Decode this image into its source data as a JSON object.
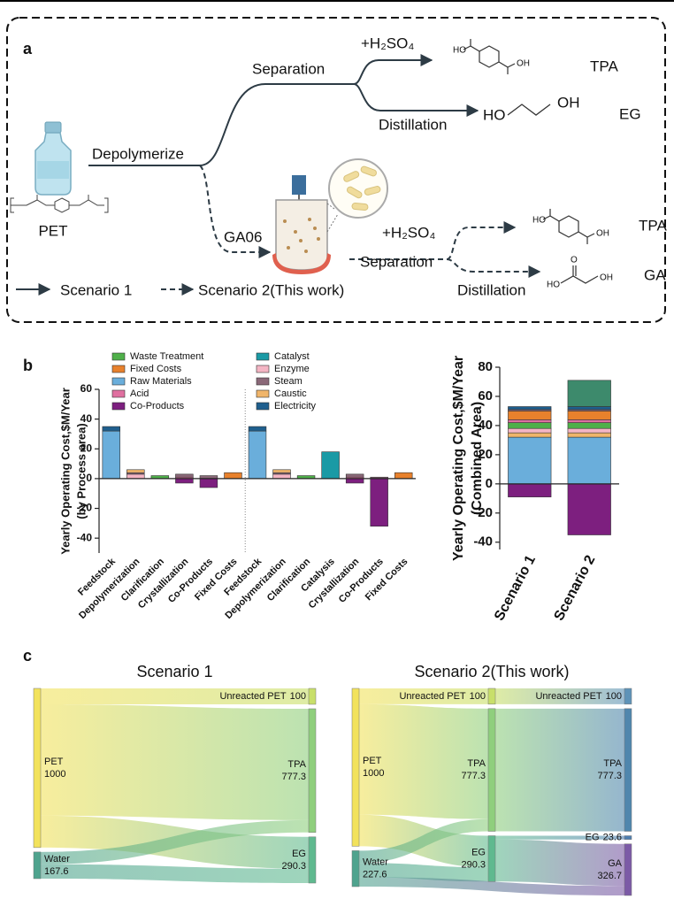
{
  "panel_labels": [
    "a",
    "b",
    "c"
  ],
  "panel_a": {
    "start": "PET",
    "depolymerize": "Depolymerize",
    "scenario1": {
      "separation": "Separation",
      "acid": "+H₂SO₄",
      "distillation": "Distillation",
      "product1": "TPA",
      "product2": "EG"
    },
    "scenario2": {
      "strain": "GA06",
      "acid": "+H₂SO₄",
      "separation": "Separation",
      "distillation": "Distillation",
      "product1": "TPA",
      "product2": "GA"
    },
    "structures": {
      "tpa1": [
        "HO",
        "OH"
      ],
      "eg": [
        "HO",
        "OH"
      ],
      "tpa2": [
        "HO",
        "OH"
      ],
      "ga": [
        "HO",
        "O",
        "OH"
      ]
    },
    "legend": [
      "Scenario 1",
      "Scenario 2(This work)"
    ]
  },
  "chart_data": [
    {
      "type": "bar",
      "ylabel": [
        "Yearly Operating Cost,$M/Year",
        "(by Process area)"
      ],
      "categories": [
        "Feedstock",
        "Depolymerization",
        "Clarification",
        "Crystallization",
        "Co-Products",
        "Fixed Costs",
        "Feedstock",
        "Depolymerization",
        "Clarification",
        "Catalysis",
        "Crystallization",
        "Co-Products",
        "Fixed Costs"
      ],
      "ylim": [
        -50,
        60
      ],
      "yticks": [
        60,
        40,
        20,
        0,
        -20,
        -40
      ],
      "legend": "top",
      "series": [
        {
          "name": "Waste Treatment",
          "color": "#4fb04a",
          "values": [
            null,
            null,
            2,
            null,
            null,
            null,
            null,
            null,
            2,
            null,
            null,
            null,
            null
          ]
        },
        {
          "name": "Fixed Costs",
          "color": "#e8812c",
          "values": [
            null,
            null,
            null,
            null,
            null,
            4,
            null,
            null,
            null,
            null,
            null,
            null,
            4
          ]
        },
        {
          "name": "Raw Materials",
          "color": "#6aaedb",
          "values": [
            32,
            null,
            null,
            null,
            null,
            null,
            32,
            null,
            null,
            null,
            null,
            null,
            null
          ]
        },
        {
          "name": "Acid",
          "color": "#e070a0",
          "values": [
            null,
            null,
            null,
            1,
            null,
            null,
            null,
            null,
            null,
            null,
            1,
            null,
            null
          ]
        },
        {
          "name": "Co-Products",
          "color": "#7d1f7f",
          "values": [
            null,
            null,
            null,
            -3,
            -6,
            null,
            null,
            null,
            null,
            null,
            -3,
            -32,
            null
          ]
        },
        {
          "name": "Catalyst",
          "color": "#1a9aa5",
          "values": [
            null,
            null,
            null,
            null,
            null,
            null,
            null,
            null,
            null,
            18,
            null,
            null,
            null
          ]
        },
        {
          "name": "Enzyme",
          "color": "#f4b5c4",
          "values": [
            null,
            3,
            null,
            null,
            null,
            null,
            null,
            3,
            null,
            null,
            null,
            null,
            null
          ]
        },
        {
          "name": "Steam",
          "color": "#8a6878",
          "values": [
            null,
            1,
            null,
            2,
            2,
            null,
            null,
            1,
            null,
            null,
            2,
            1,
            null
          ]
        },
        {
          "name": "Caustic",
          "color": "#f0b56a",
          "values": [
            null,
            2,
            null,
            null,
            null,
            null,
            null,
            2,
            null,
            null,
            null,
            null,
            null
          ]
        },
        {
          "name": "Electricity",
          "color": "#1f5f8e",
          "values": [
            3,
            null,
            null,
            null,
            null,
            null,
            3,
            null,
            null,
            null,
            null,
            null,
            null
          ]
        }
      ]
    },
    {
      "type": "bar",
      "ylabel": [
        "Yearly Operating Cost,$M/Year",
        "(Combined Area)"
      ],
      "categories": [
        "Scenario 1",
        "Scenario 2"
      ],
      "ylim": [
        -45,
        80
      ],
      "yticks": [
        80,
        60,
        40,
        20,
        0,
        -20,
        -40
      ],
      "series": [
        {
          "name": "Raw Materials",
          "color": "#6aaedb",
          "values": [
            32,
            32
          ]
        },
        {
          "name": "Caustic",
          "color": "#f0b56a",
          "values": [
            3,
            3
          ]
        },
        {
          "name": "Enzyme",
          "color": "#f4b5c4",
          "values": [
            3,
            3
          ]
        },
        {
          "name": "Waste Treatment",
          "color": "#4fb04a",
          "values": [
            4,
            4
          ]
        },
        {
          "name": "Acid",
          "color": "#e070a0",
          "values": [
            2,
            2
          ]
        },
        {
          "name": "Fixed Costs",
          "color": "#e8812c",
          "values": [
            6,
            6
          ]
        },
        {
          "name": "Steam",
          "color": "#8a6878",
          "values": [
            1,
            1
          ]
        },
        {
          "name": "Electricity",
          "color": "#1f5f8e",
          "values": [
            2,
            2
          ]
        },
        {
          "name": "Catalyst",
          "color": "#3d8a6c",
          "values": [
            null,
            18
          ]
        },
        {
          "name": "Co-Products",
          "color": "#7d1f7f",
          "values": [
            -9,
            -35
          ]
        }
      ]
    },
    {
      "type": "sankey",
      "title": "Scenario 1",
      "nodes": [
        {
          "name": "PET",
          "value": 1000,
          "color": "#f2e25c"
        },
        {
          "name": "Water",
          "value": 167.6,
          "color": "#4fa38e"
        },
        {
          "name": "Unreacted PET",
          "value": 100,
          "color": "#c8df6a"
        },
        {
          "name": "TPA",
          "value": 777.3,
          "color": "#8fcf7d"
        },
        {
          "name": "EG",
          "value": 290.3,
          "color": "#5fb98f"
        }
      ],
      "links": [
        {
          "source": 0,
          "target": 2,
          "value": 100
        },
        {
          "source": 0,
          "target": 3,
          "value": 700
        },
        {
          "source": 0,
          "target": 4,
          "value": 200
        },
        {
          "source": 1,
          "target": 3,
          "value": 77.3
        },
        {
          "source": 1,
          "target": 4,
          "value": 90.3
        }
      ]
    },
    {
      "type": "sankey",
      "title": "Scenario 2(This work)",
      "nodes": [
        {
          "name": "PET",
          "value": 1000,
          "color": "#f2e25c"
        },
        {
          "name": "Water",
          "value": 227.6,
          "color": "#4fa38e"
        },
        {
          "name": "Unreacted PET",
          "value": 100,
          "color": "#c8df6a"
        },
        {
          "name": "TPA",
          "value": 777.3,
          "color": "#8fcf7d"
        },
        {
          "name": "EG",
          "value": 290.3,
          "color": "#5fb98f"
        },
        {
          "name": "Unreacted PET",
          "value": 100,
          "color": "#5e93b8"
        },
        {
          "name": "TPA",
          "value": 777.3,
          "color": "#4f86ad"
        },
        {
          "name": "EG",
          "value": 23.6,
          "color": "#4f7fb0"
        },
        {
          "name": "GA",
          "value": 326.7,
          "color": "#7c5aa6"
        }
      ],
      "links": [
        {
          "source": 0,
          "target": 2,
          "value": 100
        },
        {
          "source": 0,
          "target": 3,
          "value": 700
        },
        {
          "source": 0,
          "target": 4,
          "value": 200
        },
        {
          "source": 1,
          "target": 3,
          "value": 77.3
        },
        {
          "source": 1,
          "target": 4,
          "value": 90.3
        },
        {
          "source": 2,
          "target": 5,
          "value": 100
        },
        {
          "source": 3,
          "target": 6,
          "value": 777.3
        },
        {
          "source": 4,
          "target": 7,
          "value": 23.6
        },
        {
          "source": 4,
          "target": 8,
          "value": 266.7
        },
        {
          "source": 1,
          "target": 8,
          "value": 60
        }
      ]
    }
  ]
}
